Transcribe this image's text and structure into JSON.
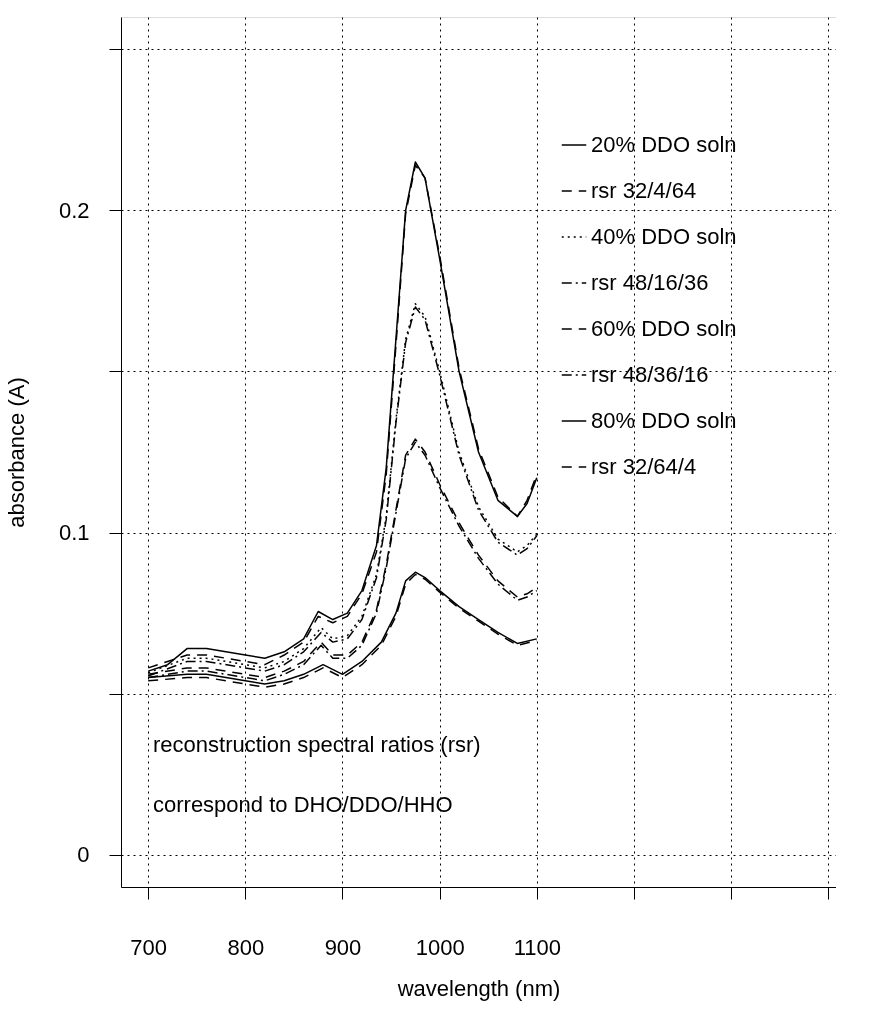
{
  "chart_data": {
    "type": "line",
    "xlabel": "wavelength (nm)",
    "ylabel": "absorbance (A)",
    "xlim": [
      672,
      1408
    ],
    "ylim": [
      -0.01,
      0.26
    ],
    "xticks": [
      700,
      800,
      900,
      1000,
      1100,
      {
        "value": 1200,
        "label": null
      },
      {
        "value": 1300,
        "label": null
      },
      {
        "value": 1400,
        "label": null
      }
    ],
    "yticks": [
      0,
      {
        "value": 0.05,
        "label": null
      },
      0.1,
      {
        "value": 0.15,
        "label": null
      },
      0.2,
      {
        "value": 0.25,
        "label": null
      }
    ],
    "grid": true,
    "legend": "top right",
    "marker": "none",
    "annotations": [
      "reconstruction spectral ratios (rsr)",
      "correspond to DHO/DDO/HHO"
    ],
    "series": [
      {
        "name": "20% DDO soln",
        "color": "#000000",
        "line_style": "solid",
        "x": [
          700,
          720,
          740,
          760,
          780,
          800,
          820,
          840,
          860,
          875,
          890,
          905,
          920,
          935,
          945,
          955,
          965,
          975,
          985,
          1000,
          1020,
          1040,
          1060,
          1080,
          1090,
          1100
        ],
        "values": [
          0.057,
          0.059,
          0.064,
          0.064,
          0.063,
          0.062,
          0.061,
          0.063,
          0.067,
          0.0755,
          0.073,
          0.075,
          0.082,
          0.096,
          0.12,
          0.16,
          0.2,
          0.215,
          0.21,
          0.185,
          0.15,
          0.125,
          0.11,
          0.105,
          0.109,
          0.117
        ]
      },
      {
        "name": "rsr 32/4/64",
        "color": "#000000",
        "line_style": "dashed",
        "x": [
          700,
          720,
          740,
          760,
          780,
          800,
          820,
          840,
          860,
          875,
          890,
          905,
          920,
          935,
          945,
          955,
          965,
          975,
          985,
          1000,
          1020,
          1040,
          1060,
          1080,
          1090,
          1100
        ],
        "values": [
          0.058,
          0.06,
          0.062,
          0.062,
          0.061,
          0.06,
          0.059,
          0.062,
          0.066,
          0.074,
          0.072,
          0.074,
          0.081,
          0.094,
          0.118,
          0.158,
          0.199,
          0.214,
          0.21,
          0.186,
          0.151,
          0.126,
          0.111,
          0.105,
          0.11,
          0.118
        ]
      },
      {
        "name": "40% DDO soln",
        "color": "#000000",
        "line_style": "dotted",
        "x": [
          700,
          740,
          760,
          800,
          820,
          840,
          860,
          878,
          890,
          905,
          920,
          935,
          945,
          955,
          965,
          975,
          985,
          1000,
          1020,
          1040,
          1060,
          1080,
          1090,
          1100
        ],
        "values": [
          0.0565,
          0.061,
          0.061,
          0.059,
          0.058,
          0.06,
          0.064,
          0.0705,
          0.067,
          0.068,
          0.074,
          0.087,
          0.105,
          0.135,
          0.16,
          0.171,
          0.167,
          0.15,
          0.125,
          0.108,
          0.098,
          0.094,
          0.096,
          0.0995
        ]
      },
      {
        "name": "rsr 48/16/36",
        "color": "#000000",
        "line_style": "dashdot",
        "x": [
          700,
          740,
          760,
          800,
          820,
          840,
          860,
          878,
          890,
          905,
          920,
          935,
          945,
          955,
          965,
          975,
          985,
          1000,
          1020,
          1040,
          1060,
          1080,
          1090,
          1100
        ],
        "values": [
          0.0555,
          0.06,
          0.06,
          0.058,
          0.057,
          0.059,
          0.063,
          0.069,
          0.066,
          0.067,
          0.073,
          0.086,
          0.104,
          0.134,
          0.159,
          0.17,
          0.166,
          0.149,
          0.124,
          0.107,
          0.097,
          0.093,
          0.095,
          0.099
        ]
      },
      {
        "name": "60% DDO soln",
        "color": "#000000",
        "line_style": "dashed",
        "x": [
          700,
          740,
          760,
          800,
          820,
          840,
          860,
          878,
          890,
          905,
          920,
          935,
          945,
          955,
          965,
          975,
          985,
          1000,
          1020,
          1040,
          1060,
          1080,
          1090,
          1100
        ],
        "values": [
          0.056,
          0.058,
          0.058,
          0.056,
          0.055,
          0.057,
          0.06,
          0.066,
          0.062,
          0.062,
          0.066,
          0.076,
          0.09,
          0.107,
          0.124,
          0.129,
          0.125,
          0.115,
          0.103,
          0.093,
          0.085,
          0.08,
          0.081,
          0.083
        ]
      },
      {
        "name": "rsr 48/36/16",
        "color": "#000000",
        "line_style": "dashdot",
        "x": [
          700,
          740,
          760,
          800,
          820,
          840,
          860,
          878,
          890,
          905,
          920,
          935,
          945,
          955,
          965,
          975,
          985,
          1000,
          1020,
          1040,
          1060,
          1080,
          1090,
          1100
        ],
        "values": [
          0.055,
          0.057,
          0.057,
          0.055,
          0.054,
          0.056,
          0.059,
          0.065,
          0.061,
          0.061,
          0.065,
          0.075,
          0.089,
          0.106,
          0.123,
          0.128,
          0.124,
          0.114,
          0.102,
          0.092,
          0.084,
          0.079,
          0.08,
          0.082
        ]
      },
      {
        "name": "80% DDO soln",
        "color": "#000000",
        "line_style": "solid",
        "x": [
          700,
          740,
          760,
          800,
          820,
          840,
          860,
          880,
          900,
          920,
          940,
          955,
          965,
          975,
          985,
          1000,
          1020,
          1040,
          1060,
          1080,
          1100
        ],
        "values": [
          0.055,
          0.056,
          0.056,
          0.054,
          0.053,
          0.054,
          0.056,
          0.059,
          0.056,
          0.06,
          0.066,
          0.075,
          0.085,
          0.0877,
          0.086,
          0.082,
          0.077,
          0.073,
          0.069,
          0.0656,
          0.067
        ]
      },
      {
        "name": "rsr 32/64/4",
        "color": "#000000",
        "line_style": "dashed",
        "x": [
          700,
          740,
          760,
          800,
          820,
          840,
          860,
          880,
          900,
          920,
          940,
          955,
          965,
          975,
          985,
          1000,
          1020,
          1040,
          1060,
          1080,
          1100
        ],
        "values": [
          0.054,
          0.055,
          0.055,
          0.053,
          0.052,
          0.053,
          0.055,
          0.058,
          0.055,
          0.059,
          0.065,
          0.074,
          0.084,
          0.087,
          0.0855,
          0.0815,
          0.0765,
          0.0725,
          0.0685,
          0.065,
          0.0665
        ]
      }
    ]
  }
}
